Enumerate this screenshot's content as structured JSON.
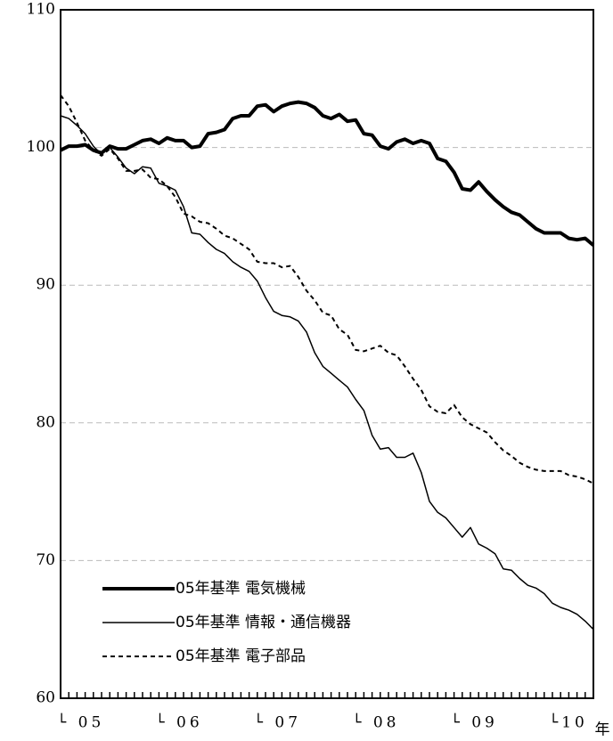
{
  "chart_data": {
    "type": "line",
    "x_label": "年",
    "categories": [
      "└ 05",
      null,
      null,
      null,
      null,
      null,
      null,
      null,
      null,
      null,
      null,
      null,
      "└ 06",
      null,
      null,
      null,
      null,
      null,
      null,
      null,
      null,
      null,
      null,
      null,
      "└ 07",
      null,
      null,
      null,
      null,
      null,
      null,
      null,
      null,
      null,
      null,
      null,
      "└ 08",
      null,
      null,
      null,
      null,
      null,
      null,
      null,
      null,
      null,
      null,
      null,
      "└ 09",
      null,
      null,
      null,
      null,
      null,
      null,
      null,
      null,
      null,
      null,
      null,
      "└10",
      null,
      null,
      null,
      null,
      null
    ],
    "series": [
      {
        "name": "05年基準 電気機械",
        "color": "#000000",
        "line_width": 4,
        "dash": "none",
        "values": [
          99.8,
          100.1,
          100.1,
          100.2,
          99.8,
          99.6,
          100.1,
          99.9,
          99.9,
          100.2,
          100.5,
          100.6,
          100.3,
          100.7,
          100.5,
          100.5,
          100.0,
          100.1,
          101.0,
          101.1,
          101.3,
          102.1,
          102.3,
          102.3,
          103.0,
          103.1,
          102.6,
          103.0,
          103.2,
          103.3,
          103.2,
          102.9,
          102.3,
          102.1,
          102.4,
          101.9,
          102.0,
          101.0,
          100.9,
          100.1,
          99.9,
          100.4,
          100.6,
          100.3,
          100.5,
          100.3,
          99.2,
          99.0,
          98.2,
          97.0,
          96.9,
          97.5,
          96.8,
          96.2,
          95.7,
          95.3,
          95.1,
          94.6,
          94.1,
          93.8,
          93.8,
          93.8,
          93.4,
          93.3,
          93.4,
          92.9
        ]
      },
      {
        "name": "05年基準 情報・通信機器",
        "color": "#000000",
        "line_width": 1.5,
        "dash": "none",
        "values": [
          102.3,
          102.1,
          101.6,
          101.0,
          100.1,
          99.5,
          100.0,
          99.3,
          98.5,
          98.1,
          98.6,
          98.5,
          97.4,
          97.2,
          96.9,
          95.7,
          93.8,
          93.7,
          93.1,
          92.6,
          92.3,
          91.7,
          91.3,
          91.0,
          90.3,
          89.1,
          88.1,
          87.8,
          87.7,
          87.4,
          86.6,
          85.1,
          84.1,
          83.6,
          83.1,
          82.6,
          81.7,
          80.9,
          79.1,
          78.1,
          78.2,
          77.5,
          77.5,
          77.8,
          76.4,
          74.3,
          73.5,
          73.1,
          72.4,
          71.7,
          72.4,
          71.2,
          70.9,
          70.5,
          69.4,
          69.3,
          68.7,
          68.2,
          68.0,
          67.6,
          66.9,
          66.6,
          66.4,
          66.1,
          65.6,
          65.0
        ]
      },
      {
        "name": "05年基準 電子部品",
        "color": "#000000",
        "line_width": 2,
        "dash": "5 4",
        "values": [
          103.8,
          103.0,
          101.8,
          100.5,
          99.8,
          99.4,
          99.9,
          99.2,
          98.3,
          98.3,
          98.4,
          97.8,
          97.7,
          97.2,
          96.4,
          95.2,
          95.0,
          94.6,
          94.5,
          94.1,
          93.6,
          93.4,
          93.0,
          92.6,
          91.7,
          91.6,
          91.6,
          91.3,
          91.4,
          90.6,
          89.6,
          88.9,
          88.0,
          87.8,
          86.8,
          86.4,
          85.3,
          85.2,
          85.4,
          85.6,
          85.1,
          84.9,
          84.1,
          83.2,
          82.4,
          81.2,
          80.8,
          80.7,
          81.3,
          80.4,
          79.9,
          79.6,
          79.3,
          78.6,
          78.0,
          77.6,
          77.1,
          76.8,
          76.6,
          76.5,
          76.5,
          76.5,
          76.2,
          76.1,
          75.9,
          75.6
        ]
      }
    ],
    "ylim": [
      60,
      110
    ],
    "yticks": [
      60,
      70,
      80,
      90,
      100,
      110
    ],
    "grid": true
  }
}
